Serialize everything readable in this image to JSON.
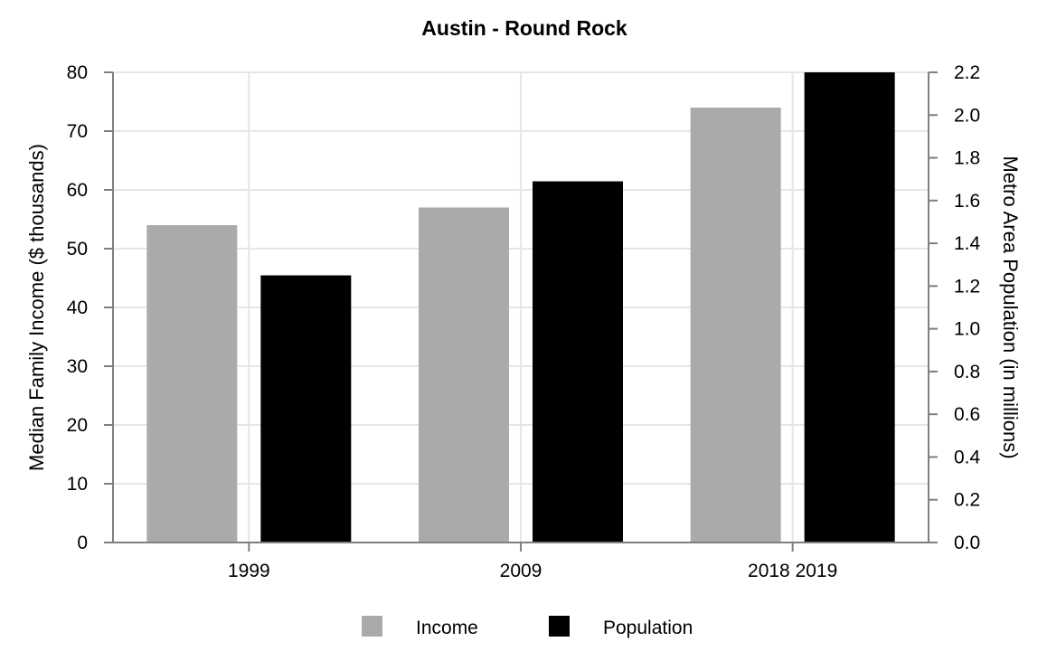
{
  "chart_data": {
    "type": "bar",
    "title": "Austin - Round Rock",
    "categories": [
      "1999",
      "2009",
      "2018 2019"
    ],
    "ylabel": "Median Family Income ($ thousands)",
    "y2label": "Metro Area Population (in millions)",
    "ylim": [
      0,
      80
    ],
    "y2lim": [
      0,
      2.2
    ],
    "yticks": [
      "0",
      "10",
      "20",
      "30",
      "40",
      "50",
      "60",
      "70",
      "80"
    ],
    "y2ticks": [
      "0.0",
      "0.2",
      "0.4",
      "0.6",
      "0.8",
      "1.0",
      "1.2",
      "1.4",
      "1.6",
      "1.8",
      "2.0",
      "2.2"
    ],
    "grid": true,
    "legend_position": "bottom",
    "series": [
      {
        "name": "Income",
        "axis": "left",
        "color": "#aaaaaa",
        "values": [
          54,
          57,
          74
        ]
      },
      {
        "name": "Population",
        "axis": "right",
        "color": "#000000",
        "values": [
          1.25,
          1.69,
          2.23
        ]
      }
    ]
  }
}
